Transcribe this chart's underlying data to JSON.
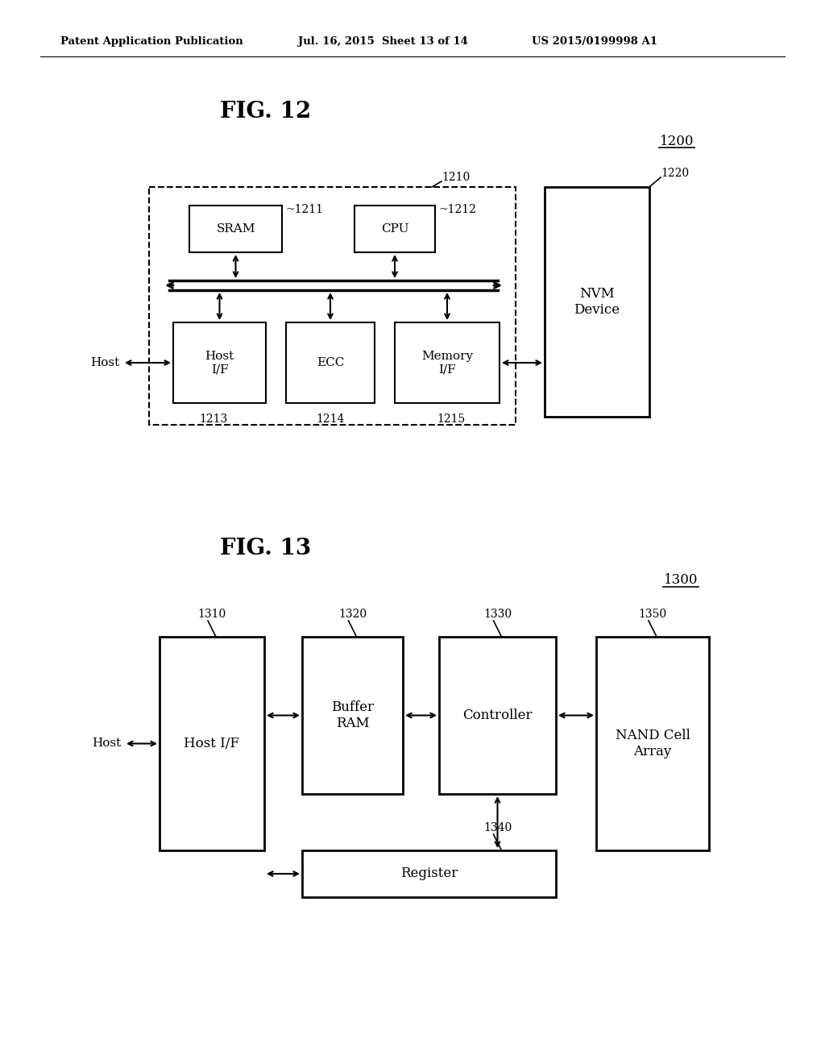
{
  "bg_color": "#ffffff",
  "header_left": "Patent Application Publication",
  "header_mid": "Jul. 16, 2015  Sheet 13 of 14",
  "header_right": "US 2015/0199998 A1",
  "fig12_title": "FIG. 12",
  "fig12_label": "1200",
  "fig13_title": "FIG. 13",
  "fig13_label": "1300",
  "fig12": {
    "controller_label": "1210",
    "nvm_label": "1220",
    "sram_label": "1211",
    "cpu_label": "1212",
    "hostif_label": "1213",
    "ecc_label": "1214",
    "memif_label": "1215",
    "host_text": "Host"
  },
  "fig13": {
    "hostif_label": "1310",
    "bufram_label": "1320",
    "ctrl_label": "1330",
    "reg_label": "1340",
    "nand_label": "1350",
    "host_text": "Host"
  }
}
